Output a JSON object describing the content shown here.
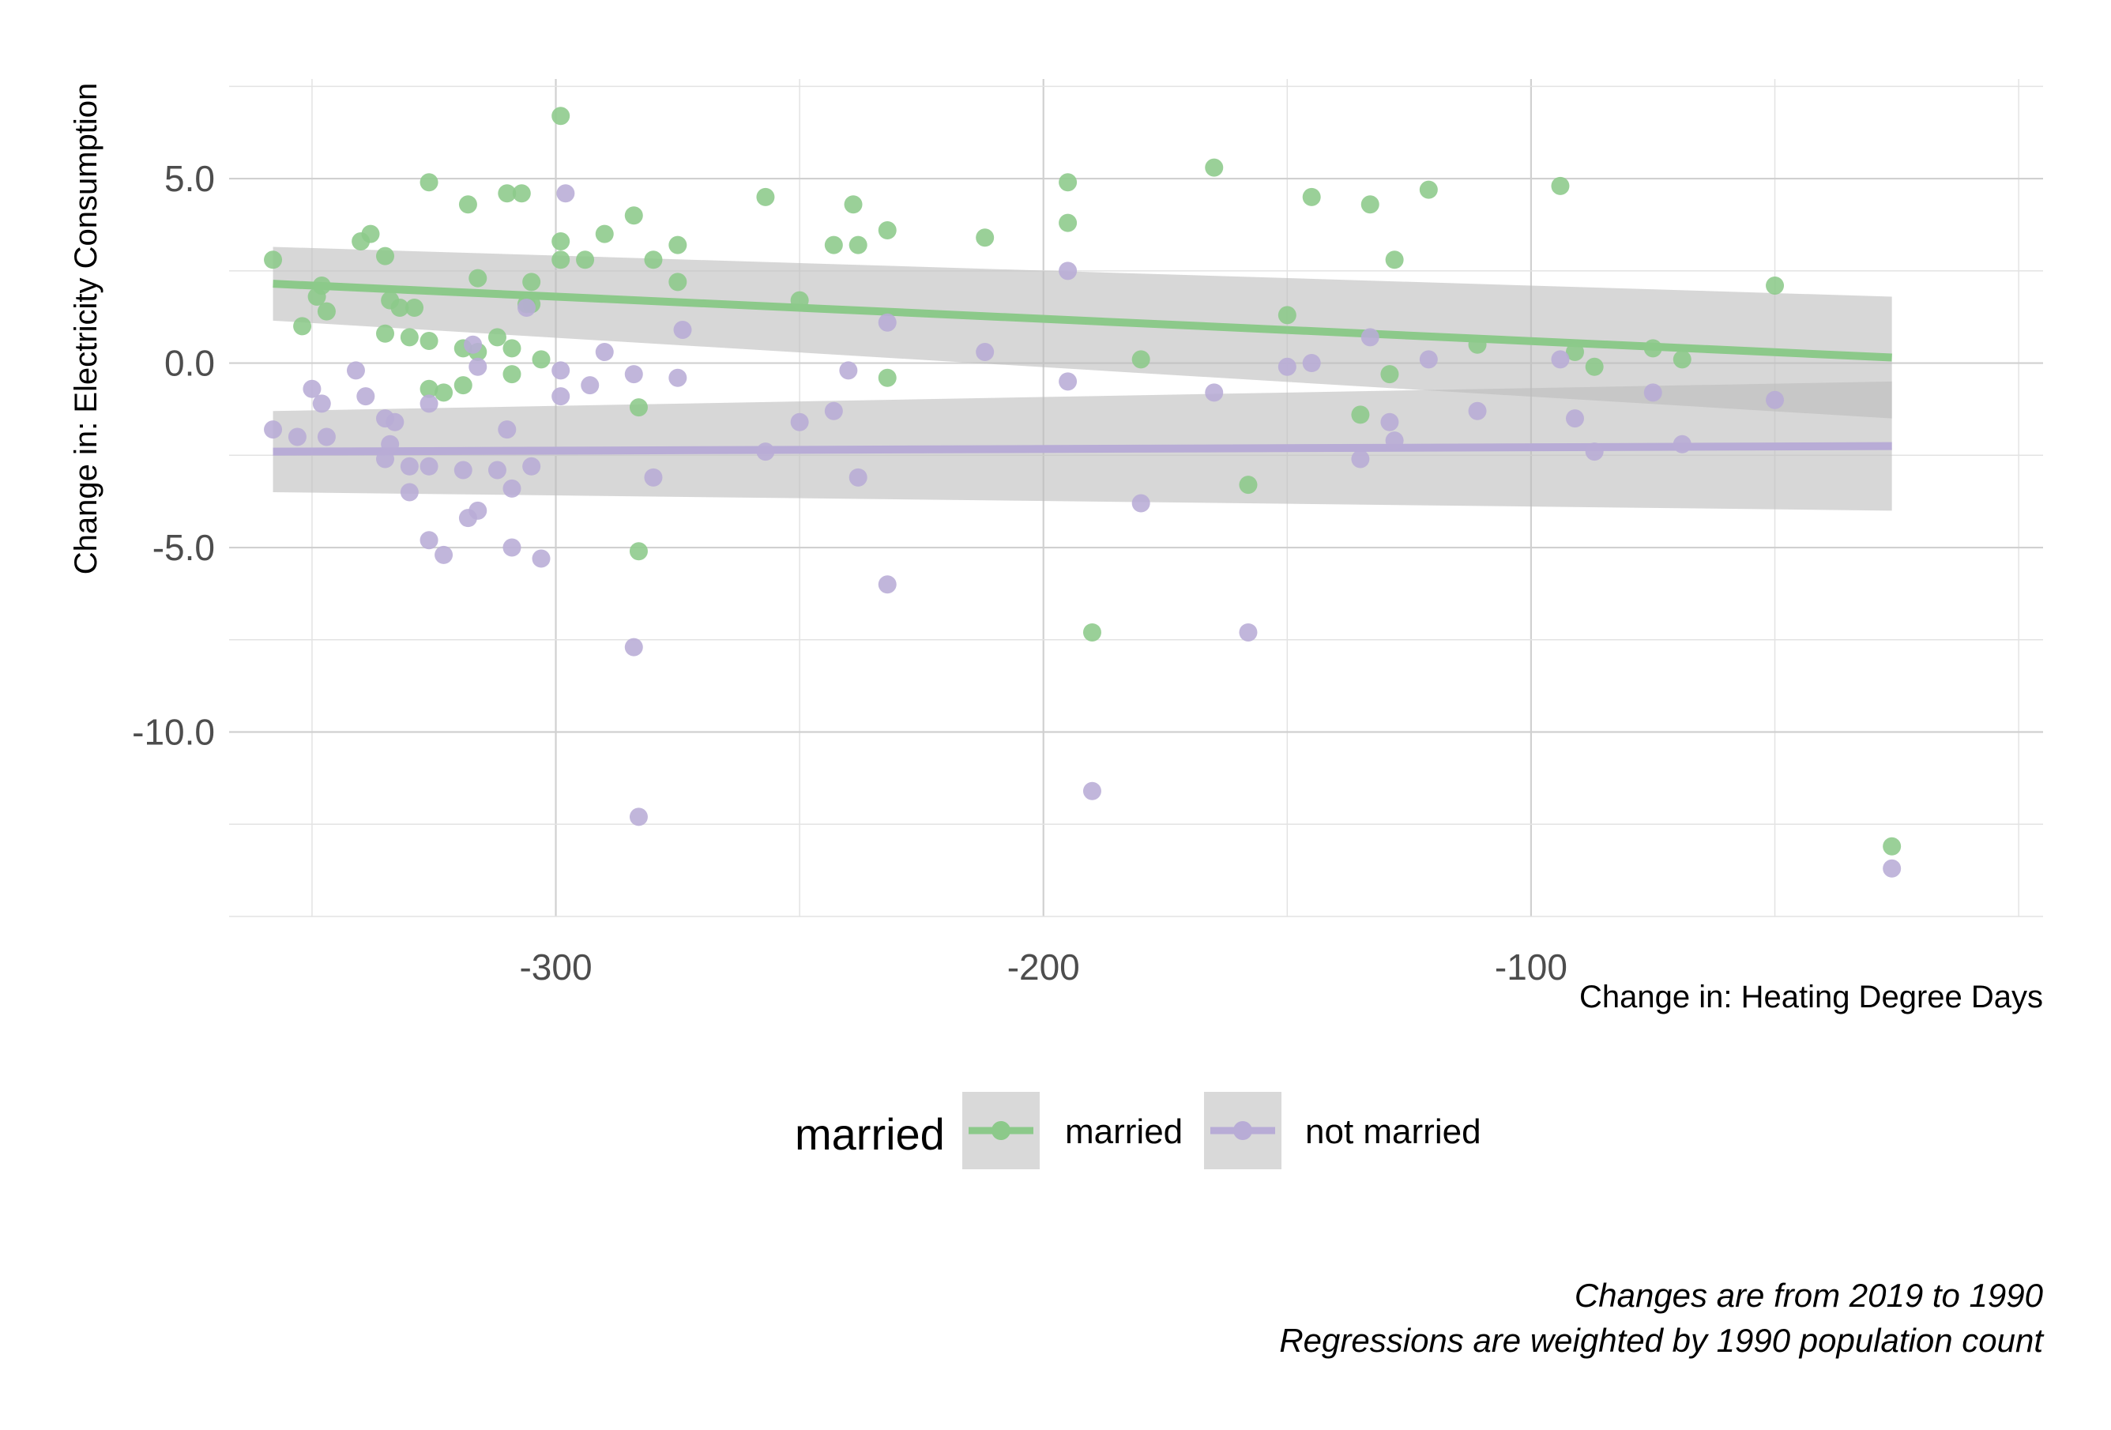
{
  "chart_data": {
    "type": "scatter",
    "xlabel": "Change in: Heating Degree Days",
    "ylabel": "Change in: Electricity Consumption",
    "xlim": [
      -367,
      5
    ],
    "ylim": [
      -15,
      7.7
    ],
    "x_ticks": [
      -300,
      -200,
      -100
    ],
    "x_tick_labels": [
      "-300",
      "-200",
      "-100"
    ],
    "y_ticks": [
      5,
      0,
      -5,
      -10
    ],
    "y_tick_labels": [
      "5.0",
      "0.0",
      "-5.0",
      "-10.0"
    ],
    "grid": true,
    "legend": {
      "title": "married",
      "position": "bottom",
      "entries": [
        "married",
        "not married"
      ]
    },
    "colors": {
      "married": "#8cc98a",
      "not married": "#b8acd6",
      "band": "#bdbdbd"
    },
    "caption": [
      "Changes are from 2019 to 1990",
      "Regressions are weighted by 1990 population count"
    ],
    "series": [
      {
        "name": "married",
        "color": "#8cc98a",
        "fit": {
          "x": [
            -358,
            -26
          ],
          "y": [
            2.15,
            0.15
          ]
        },
        "band": {
          "x": [
            -358,
            -26
          ],
          "lower": [
            1.15,
            -1.5
          ],
          "upper": [
            3.15,
            1.8
          ]
        },
        "points": [
          [
            -358,
            2.8
          ],
          [
            -352,
            1.0
          ],
          [
            -349,
            1.8
          ],
          [
            -348,
            2.1
          ],
          [
            -347,
            1.4
          ],
          [
            -340,
            3.3
          ],
          [
            -338,
            3.5
          ],
          [
            -335,
            2.9
          ],
          [
            -335,
            0.8
          ],
          [
            -334,
            1.7
          ],
          [
            -332,
            1.5
          ],
          [
            -330,
            0.7
          ],
          [
            -329,
            1.5
          ],
          [
            -326,
            4.9
          ],
          [
            -326,
            0.6
          ],
          [
            -326,
            -0.7
          ],
          [
            -323,
            -0.8
          ],
          [
            -319,
            0.4
          ],
          [
            -319,
            -0.6
          ],
          [
            -318,
            4.3
          ],
          [
            -316,
            0.3
          ],
          [
            -316,
            2.3
          ],
          [
            -312,
            0.7
          ],
          [
            -310,
            4.6
          ],
          [
            -309,
            0.4
          ],
          [
            -309,
            -0.3
          ],
          [
            -307,
            4.6
          ],
          [
            -306,
            1.6
          ],
          [
            -305,
            2.2
          ],
          [
            -305,
            1.6
          ],
          [
            -303,
            0.1
          ],
          [
            -299,
            3.3
          ],
          [
            -299,
            2.8
          ],
          [
            -299,
            6.7
          ],
          [
            -294,
            2.8
          ],
          [
            -290,
            3.5
          ],
          [
            -284,
            4.0
          ],
          [
            -283,
            -1.2
          ],
          [
            -280,
            2.8
          ],
          [
            -275,
            3.2
          ],
          [
            -275,
            2.2
          ],
          [
            -283,
            -5.1
          ],
          [
            -257,
            4.5
          ],
          [
            -250,
            1.7
          ],
          [
            -243,
            3.2
          ],
          [
            -239,
            4.3
          ],
          [
            -238,
            3.2
          ],
          [
            -232,
            3.6
          ],
          [
            -232,
            -0.4
          ],
          [
            -212,
            3.4
          ],
          [
            -195,
            4.9
          ],
          [
            -195,
            3.8
          ],
          [
            -190,
            -7.3
          ],
          [
            -180,
            0.1
          ],
          [
            -165,
            5.3
          ],
          [
            -158,
            -3.3
          ],
          [
            -150,
            1.3
          ],
          [
            -145,
            4.5
          ],
          [
            -133,
            4.3
          ],
          [
            -135,
            -1.4
          ],
          [
            -128,
            2.8
          ],
          [
            -129,
            -0.3
          ],
          [
            -121,
            4.7
          ],
          [
            -111,
            0.5
          ],
          [
            -94,
            4.8
          ],
          [
            -91,
            0.3
          ],
          [
            -87,
            -0.1
          ],
          [
            -75,
            0.4
          ],
          [
            -69,
            0.1
          ],
          [
            -50,
            2.1
          ],
          [
            -26,
            -13.1
          ]
        ]
      },
      {
        "name": "not married",
        "color": "#b8acd6",
        "fit": {
          "x": [
            -358,
            -26
          ],
          "y": [
            -2.4,
            -2.25
          ]
        },
        "band": {
          "x": [
            -358,
            -26
          ],
          "lower": [
            -3.5,
            -4.0
          ],
          "upper": [
            -1.3,
            -0.5
          ]
        },
        "points": [
          [
            -358,
            -1.8
          ],
          [
            -350,
            -0.7
          ],
          [
            -348,
            -1.1
          ],
          [
            -347,
            -2.0
          ],
          [
            -353,
            -2.0
          ],
          [
            -341,
            -0.2
          ],
          [
            -339,
            -0.9
          ],
          [
            -335,
            -1.5
          ],
          [
            -334,
            -2.2
          ],
          [
            -333,
            -1.6
          ],
          [
            -335,
            -2.6
          ],
          [
            -330,
            -2.8
          ],
          [
            -330,
            -3.5
          ],
          [
            -326,
            -1.1
          ],
          [
            -326,
            -2.8
          ],
          [
            -326,
            -4.8
          ],
          [
            -323,
            -5.2
          ],
          [
            -318,
            -4.2
          ],
          [
            -319,
            -2.9
          ],
          [
            -317,
            0.5
          ],
          [
            -316,
            -0.1
          ],
          [
            -316,
            -4.0
          ],
          [
            -312,
            -2.9
          ],
          [
            -310,
            -1.8
          ],
          [
            -309,
            -3.4
          ],
          [
            -309,
            -5.0
          ],
          [
            -306,
            1.5
          ],
          [
            -305,
            -2.8
          ],
          [
            -303,
            -5.3
          ],
          [
            -298,
            4.6
          ],
          [
            -299,
            -0.2
          ],
          [
            -299,
            -0.9
          ],
          [
            -293,
            -0.6
          ],
          [
            -290,
            0.3
          ],
          [
            -284,
            -0.3
          ],
          [
            -284,
            -7.7
          ],
          [
            -283,
            -12.3
          ],
          [
            -280,
            -3.1
          ],
          [
            -274,
            0.9
          ],
          [
            -275,
            -0.4
          ],
          [
            -257,
            -2.4
          ],
          [
            -250,
            -1.6
          ],
          [
            -243,
            -1.3
          ],
          [
            -240,
            -0.2
          ],
          [
            -238,
            -3.1
          ],
          [
            -232,
            1.1
          ],
          [
            -232,
            -6.0
          ],
          [
            -212,
            0.3
          ],
          [
            -195,
            2.5
          ],
          [
            -195,
            -0.5
          ],
          [
            -190,
            -11.6
          ],
          [
            -180,
            -3.8
          ],
          [
            -165,
            -0.8
          ],
          [
            -158,
            -7.3
          ],
          [
            -150,
            -0.1
          ],
          [
            -145,
            0.0
          ],
          [
            -133,
            0.7
          ],
          [
            -135,
            -2.6
          ],
          [
            -129,
            -1.6
          ],
          [
            -128,
            -2.1
          ],
          [
            -121,
            0.1
          ],
          [
            -111,
            -1.3
          ],
          [
            -94,
            0.1
          ],
          [
            -91,
            -1.5
          ],
          [
            -87,
            -2.4
          ],
          [
            -75,
            -0.8
          ],
          [
            -69,
            -2.2
          ],
          [
            -50,
            -1.0
          ],
          [
            -26,
            -13.7
          ]
        ]
      }
    ]
  }
}
